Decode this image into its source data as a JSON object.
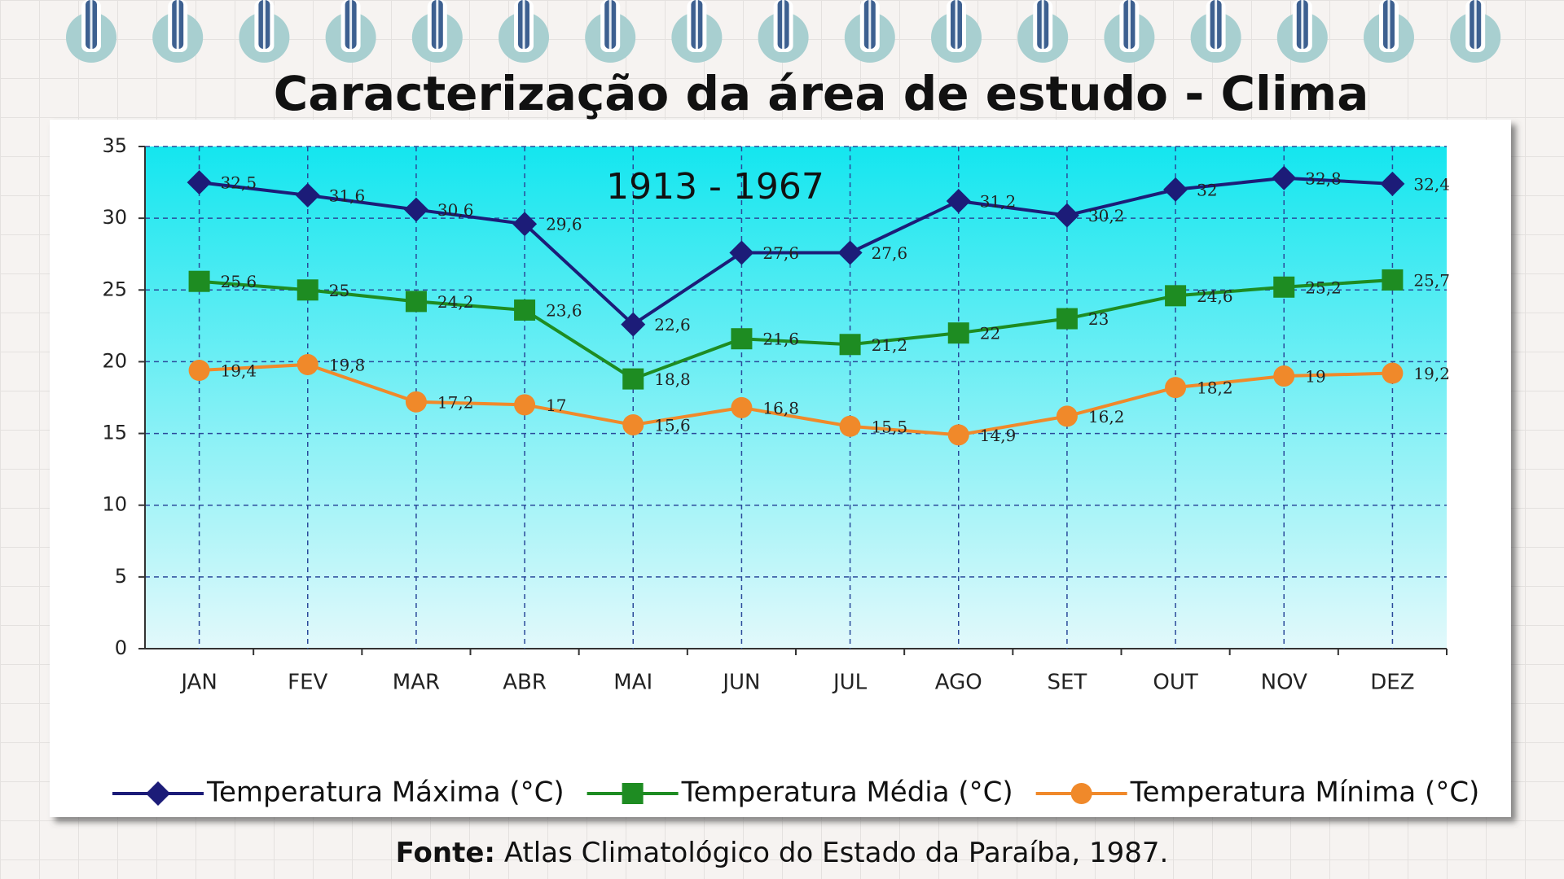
{
  "title": "Caracterização da área de estudo - Clima",
  "chart_data": {
    "type": "line",
    "subtitle": "1913 - 1967",
    "categories": [
      "JAN",
      "FEV",
      "MAR",
      "ABR",
      "MAI",
      "JUN",
      "JUL",
      "AGO",
      "SET",
      "OUT",
      "NOV",
      "DEZ"
    ],
    "series": [
      {
        "name": "Temperatura Máxima (°C)",
        "color": "#1c1c78",
        "marker": "diamond",
        "values": [
          32.5,
          31.6,
          30.6,
          29.6,
          22.6,
          27.6,
          27.6,
          31.2,
          30.2,
          32,
          32.8,
          32.4
        ],
        "value_labels": [
          "32,5",
          "31,6",
          "30,6",
          "29,6",
          "22,6",
          "27,6",
          "27,6",
          "31,2",
          "30,2",
          "32",
          "32,8",
          "32,4"
        ]
      },
      {
        "name": "Temperatura Média (°C)",
        "color": "#1e8c22",
        "marker": "square",
        "values": [
          25.6,
          25,
          24.2,
          23.6,
          18.8,
          21.6,
          21.2,
          22,
          23,
          24.6,
          25.2,
          25.7
        ],
        "value_labels": [
          "25,6",
          "25",
          "24,2",
          "23,6",
          "18,8",
          "21,6",
          "21,2",
          "22",
          "23",
          "24,6",
          "25,2",
          "25,7"
        ]
      },
      {
        "name": "Temperatura Mínima (°C)",
        "color": "#f0892a",
        "marker": "circle",
        "values": [
          19.4,
          19.8,
          17.2,
          17,
          15.6,
          16.8,
          15.5,
          14.9,
          16.2,
          18.2,
          19,
          19.2
        ],
        "value_labels": [
          "19,4",
          "19,8",
          "17,2",
          "17",
          "15,6",
          "16,8",
          "15,5",
          "14,9",
          "16,2",
          "18,2",
          "19",
          "19,2"
        ]
      }
    ],
    "ylim": [
      0,
      35
    ],
    "yticks": [
      0,
      5,
      10,
      15,
      20,
      25,
      30,
      35
    ],
    "grid": true
  },
  "source": {
    "label": "Fonte:",
    "text": "Atlas Climatológico do Estado da Paraíba, 1987."
  }
}
